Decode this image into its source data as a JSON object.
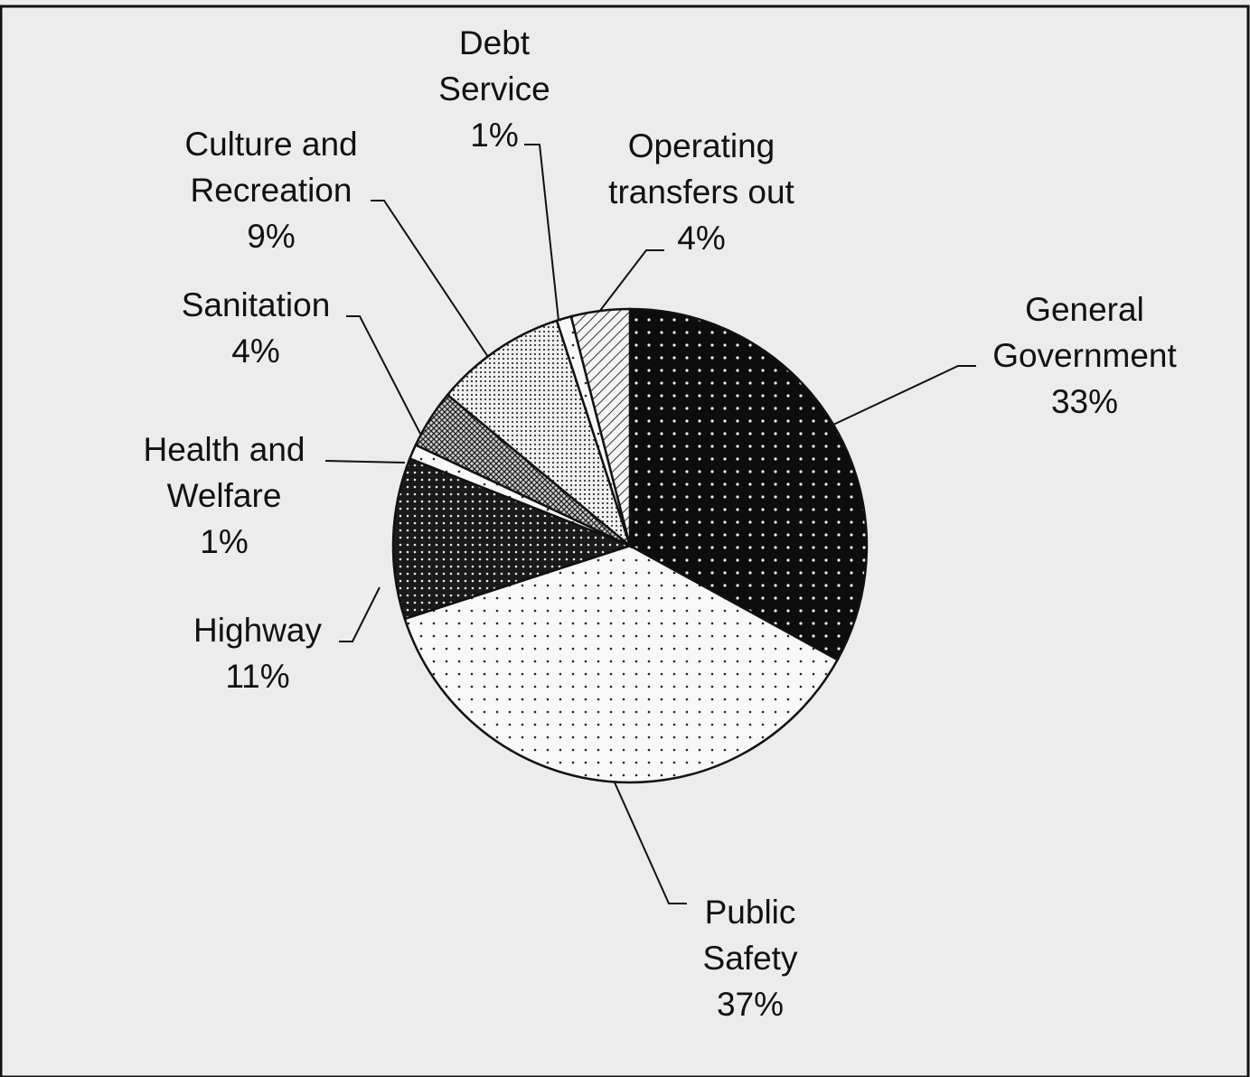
{
  "chart_data": {
    "type": "pie",
    "start_angle": "12 o'clock, clockwise",
    "slices": [
      {
        "name": "General Government",
        "lines": [
          "General",
          "Government"
        ],
        "value": 33,
        "pct_label": "33%",
        "pattern": "dark-dots"
      },
      {
        "name": "Public Safety",
        "lines": [
          "Public",
          "Safety"
        ],
        "value": 37,
        "pct_label": "37%",
        "pattern": "light-dots"
      },
      {
        "name": "Highway",
        "lines": [
          "Highway"
        ],
        "value": 11,
        "pct_label": "11%",
        "pattern": "dense-dots"
      },
      {
        "name": "Health and Welfare",
        "lines": [
          "Health and",
          "Welfare"
        ],
        "value": 1,
        "pct_label": "1%",
        "pattern": "light-dots"
      },
      {
        "name": "Sanitation",
        "lines": [
          "Sanitation"
        ],
        "value": 4,
        "pct_label": "4%",
        "pattern": "crosshatch"
      },
      {
        "name": "Culture and Recreation",
        "lines": [
          "Culture and",
          "Recreation"
        ],
        "value": 9,
        "pct_label": "9%",
        "pattern": "fine-dots"
      },
      {
        "name": "Debt Service",
        "lines": [
          "Debt",
          "Service"
        ],
        "value": 1,
        "pct_label": "1%",
        "pattern": "light-dots"
      },
      {
        "name": "Operating transfers out",
        "lines": [
          "Operating",
          "transfers out"
        ],
        "value": 4,
        "pct_label": "4%",
        "pattern": "diagonal"
      }
    ],
    "colors": {
      "background": "#ececec",
      "ink": "#111111",
      "dark_fill": "#0d0d0d",
      "light_fill": "#f8f8f8"
    }
  }
}
